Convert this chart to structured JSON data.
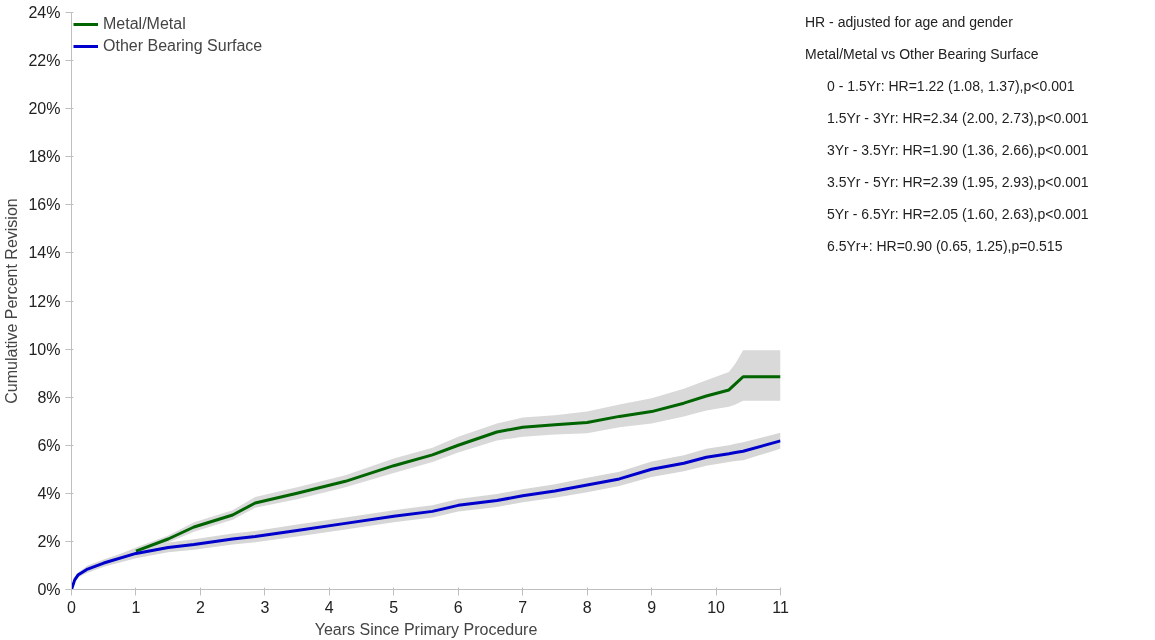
{
  "chart_data": {
    "type": "line",
    "xlabel": "Years Since Primary Procedure",
    "ylabel": "Cumulative Percent Revision",
    "xlim": [
      0,
      11
    ],
    "xticks": [
      0,
      1,
      2,
      3,
      4,
      5,
      6,
      7,
      8,
      9,
      10,
      11
    ],
    "ylim": [
      0,
      24
    ],
    "yticks": [
      {
        "value": 0,
        "label": "0%"
      },
      {
        "value": 2,
        "label": "2%"
      },
      {
        "value": 4,
        "label": "4%"
      },
      {
        "value": 6,
        "label": "6%"
      },
      {
        "value": 8,
        "label": "8%"
      },
      {
        "value": 10,
        "label": "10%"
      },
      {
        "value": 12,
        "label": "12%"
      },
      {
        "value": 14,
        "label": "14%"
      },
      {
        "value": 16,
        "label": "16%"
      },
      {
        "value": 18,
        "label": "18%"
      },
      {
        "value": 20,
        "label": "20%"
      },
      {
        "value": 22,
        "label": "22%"
      },
      {
        "value": 24,
        "label": "24%"
      }
    ],
    "grid": false,
    "legend": "top left",
    "line_style": "solid",
    "marker": "none",
    "x": [
      0,
      0.05,
      0.1,
      0.25,
      0.5,
      1,
      1.5,
      1.9,
      2.5,
      2.85,
      3.5,
      4.25,
      5,
      5.6,
      6,
      6.6,
      7,
      7.5,
      8,
      8.5,
      9,
      9.5,
      9.85,
      10.2,
      10.3,
      10.42,
      11
    ],
    "series": [
      {
        "name": "Metal/Metal",
        "color": "#006400",
        "values": [
          null,
          null,
          null,
          null,
          null,
          1.6,
          2.1,
          2.6,
          3.1,
          3.6,
          4.0,
          4.5,
          5.15,
          5.6,
          6.0,
          6.55,
          6.75,
          6.85,
          6.95,
          7.2,
          7.4,
          7.75,
          8.05,
          8.3,
          8.55,
          8.85,
          8.85
        ],
        "lower": [
          0,
          0.3,
          0.5,
          0.75,
          1.0,
          1.45,
          1.95,
          2.4,
          2.9,
          3.4,
          3.75,
          4.25,
          4.85,
          5.3,
          5.7,
          6.2,
          6.35,
          6.45,
          6.5,
          6.75,
          6.9,
          7.2,
          7.45,
          7.6,
          7.7,
          7.85,
          7.85
        ],
        "upper": [
          0,
          0.5,
          0.7,
          0.95,
          1.2,
          1.75,
          2.25,
          2.8,
          3.3,
          3.85,
          4.25,
          4.75,
          5.45,
          5.9,
          6.35,
          6.9,
          7.15,
          7.25,
          7.4,
          7.7,
          7.95,
          8.35,
          8.7,
          9.05,
          9.4,
          9.95,
          9.95
        ]
      },
      {
        "name": "Other Bearing Surface",
        "color": "#0000cc",
        "values": [
          0,
          0.4,
          0.6,
          0.85,
          1.1,
          1.5,
          1.75,
          1.87,
          2.1,
          2.2,
          2.45,
          2.75,
          3.05,
          3.25,
          3.5,
          3.7,
          3.9,
          4.1,
          4.35,
          4.6,
          5.0,
          5.25,
          5.5,
          5.65,
          5.7,
          5.75,
          6.18
        ],
        "lower": [
          0,
          0.3,
          0.5,
          0.7,
          0.95,
          1.3,
          1.55,
          1.65,
          1.87,
          1.97,
          2.2,
          2.5,
          2.8,
          3.0,
          3.24,
          3.43,
          3.63,
          3.82,
          4.05,
          4.3,
          4.68,
          4.92,
          5.15,
          5.3,
          5.34,
          5.38,
          5.85
        ],
        "upper": [
          0,
          0.5,
          0.7,
          1.0,
          1.25,
          1.7,
          1.95,
          2.09,
          2.33,
          2.43,
          2.7,
          3.0,
          3.3,
          3.5,
          3.76,
          3.97,
          4.17,
          4.38,
          4.65,
          4.9,
          5.32,
          5.58,
          5.85,
          6.0,
          6.06,
          6.12,
          6.52
        ]
      }
    ],
    "annotations": [
      "HR - adjusted for age and gender",
      "Metal/Metal vs Other Bearing Surface",
      "0 - 1.5Yr: HR=1.22 (1.08, 1.37),p<0.001",
      "1.5Yr - 3Yr: HR=2.34 (2.00, 2.73),p<0.001",
      "3Yr - 3.5Yr: HR=1.90 (1.36, 2.66),p<0.001",
      "3.5Yr - 5Yr: HR=2.39 (1.95, 2.93),p<0.001",
      "5Yr - 6.5Yr: HR=2.05 (1.60, 2.63),p<0.001",
      "6.5Yr+: HR=0.90 (0.65, 1.25),p=0.515"
    ]
  }
}
